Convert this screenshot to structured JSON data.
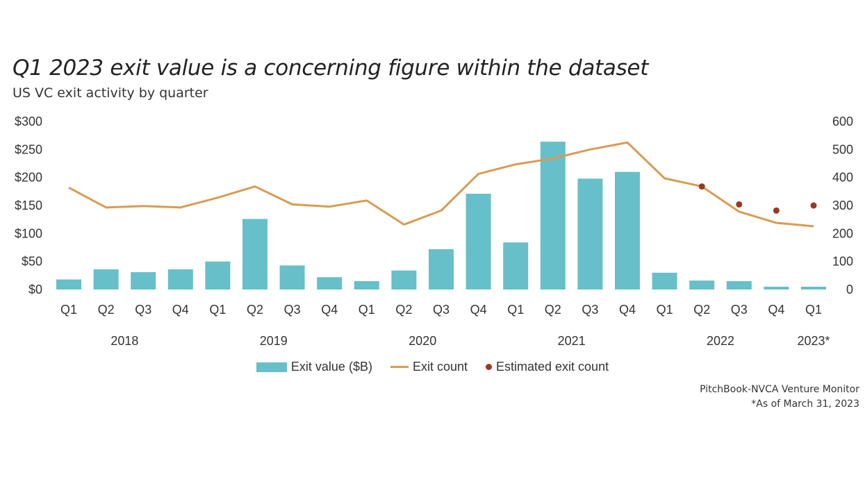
{
  "title": "Q1 2023 exit value is a concerning figure within the dataset",
  "subtitle": "US VC exit activity by quarter",
  "legend": {
    "exit_value": "Exit value ($B)",
    "exit_count": "Exit count",
    "estimated": "Estimated exit count"
  },
  "source": {
    "line1": "PitchBook-NVCA Venture Monitor",
    "line2": "*As of March 31, 2023"
  },
  "colors": {
    "bar": "#67bfc9",
    "line": "#d99b53",
    "dot": "#9c3721"
  },
  "chart_data": {
    "type": "bar",
    "categories": [
      "Q1",
      "Q2",
      "Q3",
      "Q4",
      "Q1",
      "Q2",
      "Q3",
      "Q4",
      "Q1",
      "Q2",
      "Q3",
      "Q4",
      "Q1",
      "Q2",
      "Q3",
      "Q4",
      "Q1",
      "Q2",
      "Q3",
      "Q4",
      "Q1"
    ],
    "years": [
      {
        "label": "2018",
        "from": 0,
        "to": 3
      },
      {
        "label": "2019",
        "from": 4,
        "to": 7
      },
      {
        "label": "2020",
        "from": 8,
        "to": 11
      },
      {
        "label": "2021",
        "from": 12,
        "to": 15
      },
      {
        "label": "2022",
        "from": 16,
        "to": 19
      },
      {
        "label": "2023*",
        "from": 20,
        "to": 20
      }
    ],
    "left_axis": {
      "ticks": [
        "$0",
        "$50",
        "$100",
        "$150",
        "$200",
        "$250",
        "$300"
      ],
      "ylim": [
        0,
        300
      ]
    },
    "right_axis": {
      "ticks": [
        "0",
        "100",
        "200",
        "300",
        "400",
        "500",
        "600"
      ],
      "ylim": [
        0,
        600
      ]
    },
    "series": [
      {
        "name": "Exit value ($B)",
        "type": "bar",
        "axis": "left",
        "values": [
          18,
          36,
          31,
          36,
          50,
          126,
          43,
          22,
          15,
          34,
          72,
          171,
          84,
          264,
          198,
          210,
          30,
          16,
          15,
          5,
          5
        ]
      },
      {
        "name": "Exit count",
        "type": "line",
        "axis": "right",
        "values": [
          364,
          293,
          298,
          293,
          328,
          368,
          304,
          296,
          318,
          232,
          282,
          413,
          447,
          468,
          500,
          525,
          397,
          368,
          278,
          238,
          226
        ]
      },
      {
        "name": "Estimated exit count",
        "type": "scatter",
        "axis": "right",
        "points": [
          {
            "index": 17,
            "value": 368
          },
          {
            "index": 18,
            "value": 304
          },
          {
            "index": 19,
            "value": 282
          },
          {
            "index": 20,
            "value": 300
          }
        ]
      }
    ]
  }
}
